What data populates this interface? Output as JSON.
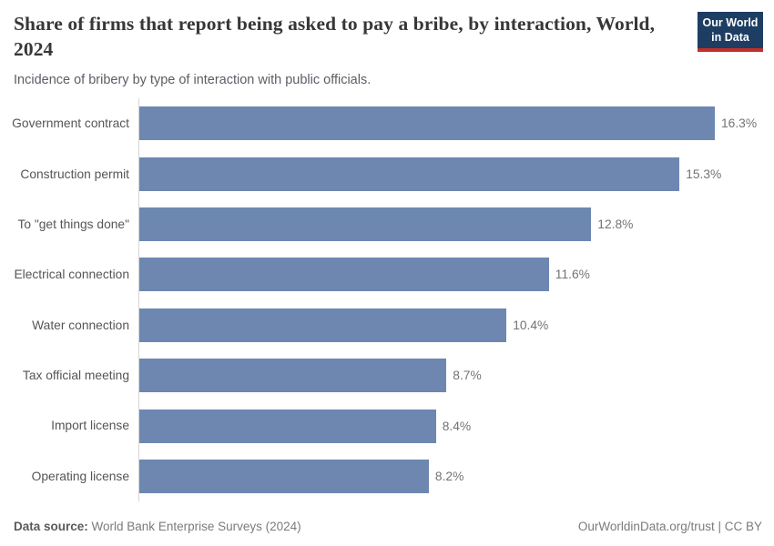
{
  "header": {
    "title": "Share of firms that report being asked to pay a bribe, by interaction, World, 2024",
    "subtitle": "Incidence of bribery by type of interaction with public officials.",
    "logo": {
      "line1": "Our World",
      "line2": "in Data"
    }
  },
  "chart_data": {
    "type": "bar",
    "orientation": "horizontal",
    "title": "Share of firms that report being asked to pay a bribe, by interaction, World, 2024",
    "subtitle": "Incidence of bribery by type of interaction with public officials.",
    "categories": [
      "Government contract",
      "Construction permit",
      "To \"get things done\"",
      "Electrical connection",
      "Water connection",
      "Tax official meeting",
      "Import license",
      "Operating license"
    ],
    "values": [
      16.3,
      15.3,
      12.8,
      11.6,
      10.4,
      8.7,
      8.4,
      8.2
    ],
    "value_labels": [
      "16.3%",
      "15.3%",
      "12.8%",
      "11.6%",
      "10.4%",
      "8.7%",
      "8.4%",
      "8.2%"
    ],
    "xlabel": "",
    "ylabel": "",
    "xlim": [
      0,
      16.3
    ],
    "grid": false,
    "legend": false,
    "bar_color": "#6d87b1"
  },
  "footer": {
    "data_source_label": "Data source:",
    "data_source_value": " World Bank Enterprise Surveys (2024)",
    "credit": "OurWorldinData.org/trust | CC BY"
  },
  "colors": {
    "bar": "#6d87b1",
    "title": "#383636",
    "subtitle": "#5b5e66",
    "axis_line": "#d5d5d5",
    "logo_navy": "#1d3d63",
    "logo_red": "#c2302a"
  }
}
